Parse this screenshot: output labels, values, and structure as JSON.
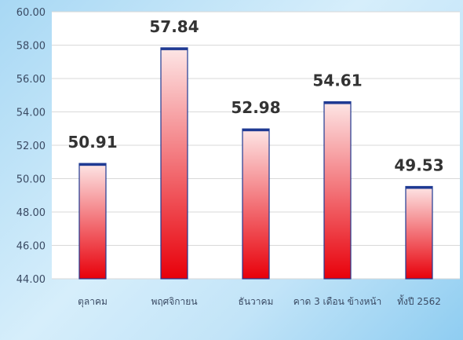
{
  "chart_data": {
    "type": "bar",
    "categories": [
      "ตุลาคม",
      "พฤศจิกายน",
      "ธันวาคม",
      "คาด 3 เดือน ข้างหน้า",
      "ทั้งปี 2562"
    ],
    "values": [
      50.91,
      57.84,
      52.98,
      54.61,
      49.53
    ],
    "data_labels": [
      "50.91",
      "57.84",
      "52.98",
      "54.61",
      "49.53"
    ],
    "ylim": [
      44.0,
      60.0
    ],
    "yticks": [
      44.0,
      46.0,
      48.0,
      50.0,
      52.0,
      54.0,
      56.0,
      58.0,
      60.0
    ],
    "ytick_labels": [
      "44.00",
      "46.00",
      "48.00",
      "50.00",
      "52.00",
      "54.00",
      "56.00",
      "58.00",
      "60.00"
    ],
    "title": "",
    "xlabel": "",
    "ylabel": "",
    "grid": true,
    "legend": false,
    "colors": {
      "bar_top": "#fde6e6",
      "bar_bottom": "#e8000a",
      "bar_outline": "#1f3a93",
      "plot_background": "#ffffff",
      "gridline": "#d9d9d9"
    }
  }
}
